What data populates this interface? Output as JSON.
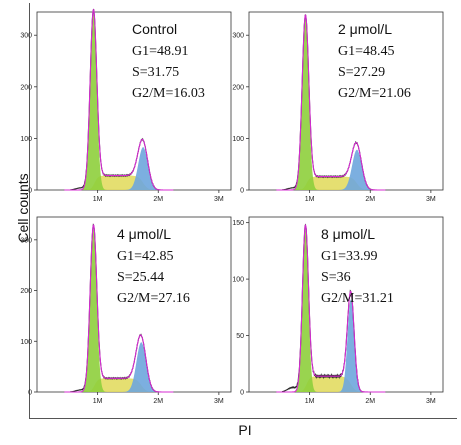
{
  "figure": {
    "ylabel": "Cell counts",
    "xlabel": "PI"
  },
  "chart_data": [
    {
      "type": "area",
      "title": "Control",
      "stats": [
        "G1=48.91",
        "S=31.75",
        "G2/M=16.03"
      ],
      "xticks": [
        "1M",
        "2M",
        "3M"
      ],
      "yticks": [
        0,
        100,
        200,
        300
      ],
      "xlim": [
        0,
        3.2
      ],
      "ylim": [
        0,
        345
      ],
      "g1": {
        "mean": 0.93,
        "sd": 0.055,
        "height": 340
      },
      "s_phase": {
        "start": 0.95,
        "end": 1.75,
        "level": 28
      },
      "g2m": {
        "mean": 1.75,
        "sd": 0.08,
        "height": 83
      },
      "colors": {
        "g1": "#8ecf3c",
        "s": "#e2dc62",
        "g2m": "#6ea6dd",
        "fit": "#d42bd0",
        "data": "#2a2a2a"
      }
    },
    {
      "type": "area",
      "title": "2 μmol/L",
      "stats": [
        "G1=48.45",
        "S=27.29",
        "G2/M=21.06"
      ],
      "xticks": [
        "1M",
        "2M",
        "3M"
      ],
      "yticks": [
        0,
        100,
        200,
        300
      ],
      "xlim": [
        0,
        3.2
      ],
      "ylim": [
        0,
        345
      ],
      "g1": {
        "mean": 0.93,
        "sd": 0.055,
        "height": 330
      },
      "s_phase": {
        "start": 0.95,
        "end": 1.78,
        "level": 26
      },
      "g2m": {
        "mean": 1.78,
        "sd": 0.08,
        "height": 78
      },
      "colors": {
        "g1": "#8ecf3c",
        "s": "#e2dc62",
        "g2m": "#6ea6dd",
        "fit": "#d42bd0",
        "data": "#2a2a2a"
      }
    },
    {
      "type": "area",
      "title": "4 μmol/L",
      "stats": [
        "G1=42.85",
        "S=25.44",
        "G2/M=27.16"
      ],
      "xticks": [
        "1M",
        "2M",
        "3M"
      ],
      "yticks": [
        0,
        100,
        200,
        300
      ],
      "xlim": [
        0,
        3.2
      ],
      "ylim": [
        0,
        345
      ],
      "g1": {
        "mean": 0.93,
        "sd": 0.055,
        "height": 320
      },
      "s_phase": {
        "start": 0.95,
        "end": 1.72,
        "level": 27
      },
      "g2m": {
        "mean": 1.72,
        "sd": 0.08,
        "height": 98
      },
      "colors": {
        "g1": "#8ecf3c",
        "s": "#e2dc62",
        "g2m": "#6ea6dd",
        "fit": "#d42bd0",
        "data": "#2a2a2a"
      }
    },
    {
      "type": "area",
      "title": "8 μmol/L",
      "stats": [
        "G1=33.99",
        "S=36",
        "G2/M=31.21"
      ],
      "xticks": [
        "1M",
        "2M",
        "3M"
      ],
      "yticks": [
        0,
        50,
        100,
        150
      ],
      "xlim": [
        0,
        3.2
      ],
      "ylim": [
        0,
        155
      ],
      "g1": {
        "mean": 0.93,
        "sd": 0.05,
        "height": 143
      },
      "s_phase": {
        "start": 0.95,
        "end": 1.68,
        "level": 14
      },
      "g2m": {
        "mean": 1.68,
        "sd": 0.055,
        "height": 82
      },
      "colors": {
        "g1": "#8ecf3c",
        "s": "#e2dc62",
        "g2m": "#6ea6dd",
        "fit": "#d42bd0",
        "data": "#2a2a2a"
      }
    }
  ]
}
